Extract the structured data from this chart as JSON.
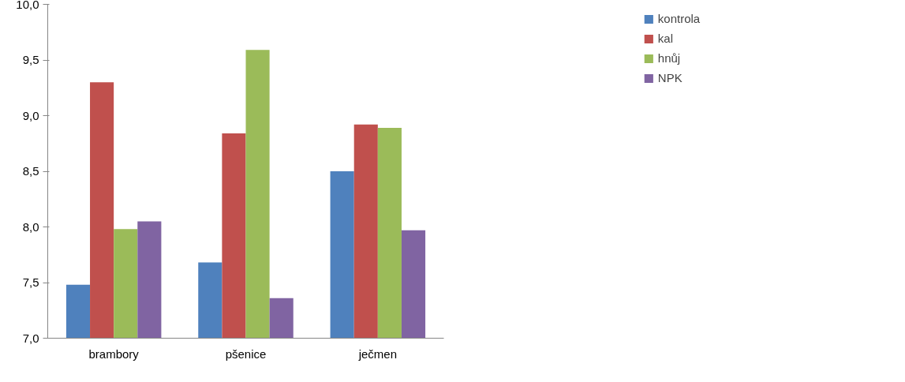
{
  "chart_data": {
    "type": "bar",
    "categories": [
      "brambory",
      "pšenice",
      "ječmen"
    ],
    "series": [
      {
        "name": "kontrola",
        "color": "#4f81bd",
        "values": [
          7.48,
          7.68,
          8.5
        ]
      },
      {
        "name": "kal",
        "color": "#c0504d",
        "values": [
          9.3,
          8.84,
          8.92
        ]
      },
      {
        "name": "hnůj",
        "color": "#9bbb59",
        "values": [
          7.98,
          9.59,
          8.89
        ]
      },
      {
        "name": "NPK",
        "color": "#8064a2",
        "values": [
          8.05,
          7.36,
          7.97
        ]
      }
    ],
    "ylim": [
      7.0,
      10.0
    ],
    "yticks": [
      {
        "value": 7.0,
        "label": "7,0"
      },
      {
        "value": 7.5,
        "label": "7,5"
      },
      {
        "value": 8.0,
        "label": "8,0"
      },
      {
        "value": 8.5,
        "label": "8,5"
      },
      {
        "value": 9.0,
        "label": "9,0"
      },
      {
        "value": 9.5,
        "label": "9,5"
      },
      {
        "value": 10.0,
        "label": "10,0"
      }
    ],
    "grid": false,
    "legend": "top right"
  }
}
